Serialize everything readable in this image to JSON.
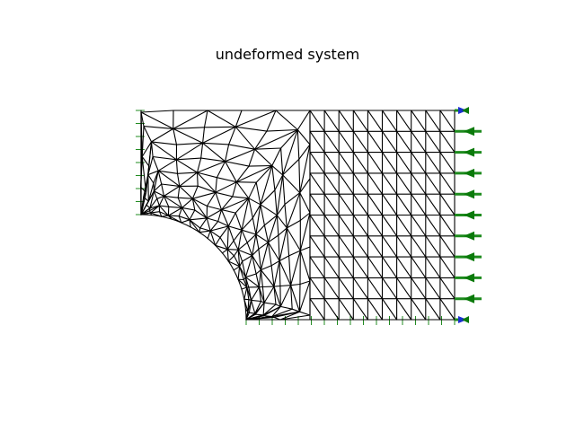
{
  "title": "undeformed system",
  "colors": {
    "mesh": "#000000",
    "support": "#1a8a1a",
    "load": "#1e8b1e",
    "corner_arrow": "#1a2fd0"
  }
}
